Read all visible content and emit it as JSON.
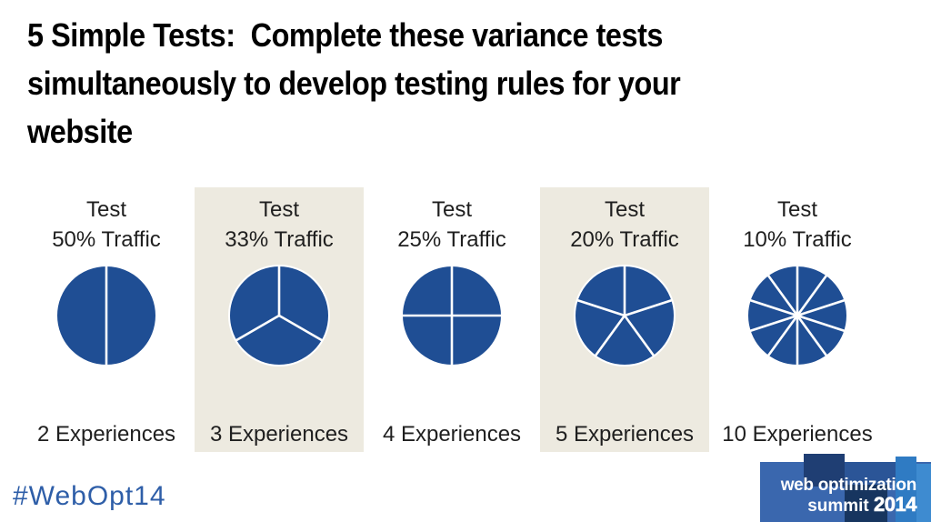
{
  "title": "5 Simple Tests:  Complete these variance tests\nsimultaneously to develop testing rules for your\nwebsite",
  "colors": {
    "pie_blue": "#1F4E94",
    "highlight_beige": "#EDEAE0",
    "hashtag_blue": "#2E5EA8",
    "logo_base": "#3A67AE",
    "logo_dark": "#1F3E73",
    "logo_mid": "#2B5597",
    "logo_darker": "#17355F",
    "logo_bright": "#2F7BC3",
    "logo_brightest": "#3E8BD0"
  },
  "columns": [
    {
      "header_line1": "Test",
      "header_line2": "50% Traffic",
      "slices": 2,
      "experiences_label": "2 Experiences",
      "highlighted": false
    },
    {
      "header_line1": "Test",
      "header_line2": "33% Traffic",
      "slices": 3,
      "experiences_label": "3 Experiences",
      "highlighted": true
    },
    {
      "header_line1": "Test",
      "header_line2": "25% Traffic",
      "slices": 4,
      "experiences_label": "4 Experiences",
      "highlighted": false
    },
    {
      "header_line1": "Test",
      "header_line2": "20% Traffic",
      "slices": 5,
      "experiences_label": "5 Experiences",
      "highlighted": true
    },
    {
      "header_line1": "Test",
      "header_line2": "10% Traffic",
      "slices": 10,
      "experiences_label": "10 Experiences",
      "highlighted": false
    }
  ],
  "footer": {
    "hashtag": "#WebOpt14"
  },
  "logo": {
    "line1": "web optimization",
    "summit": "summit",
    "year": "2014"
  },
  "chart_data": [
    {
      "type": "pie",
      "title": "Test 50% Traffic",
      "slices": 2,
      "values": [
        50,
        50
      ],
      "label": "2 Experiences"
    },
    {
      "type": "pie",
      "title": "Test 33% Traffic",
      "slices": 3,
      "values": [
        33.3,
        33.3,
        33.3
      ],
      "label": "3 Experiences"
    },
    {
      "type": "pie",
      "title": "Test 25% Traffic",
      "slices": 4,
      "values": [
        25,
        25,
        25,
        25
      ],
      "label": "4 Experiences"
    },
    {
      "type": "pie",
      "title": "Test 20% Traffic",
      "slices": 5,
      "values": [
        20,
        20,
        20,
        20,
        20
      ],
      "label": "5 Experiences"
    },
    {
      "type": "pie",
      "title": "Test 10% Traffic",
      "slices": 10,
      "values": [
        10,
        10,
        10,
        10,
        10,
        10,
        10,
        10,
        10,
        10
      ],
      "label": "10 Experiences"
    }
  ]
}
